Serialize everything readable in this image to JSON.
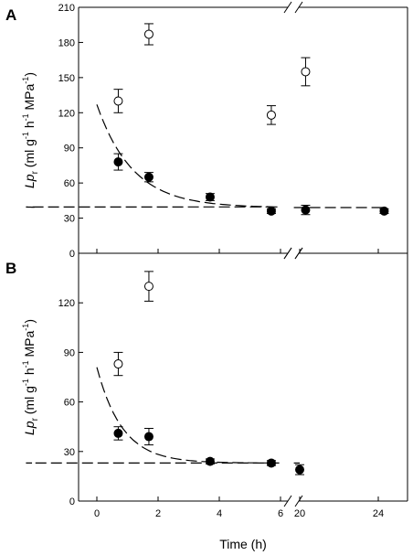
{
  "chart_data": [
    {
      "panel": "A",
      "type": "scatter",
      "ylabel": {
        "main": "Lp",
        "sub": "r",
        "units_a": " (ml g",
        "sup1": "-1",
        "units_b": " h",
        "sup2": "-1",
        "units_c": " MPa",
        "sup3": "-1",
        "close": ")"
      },
      "ylim": [
        0,
        210
      ],
      "yticks": [
        "0",
        "30",
        "60",
        "90",
        "120",
        "150",
        "180",
        "210"
      ],
      "xticks": [
        "0",
        "2",
        "4",
        "6",
        "20",
        "24"
      ],
      "x_axis_break": true,
      "series": [
        {
          "name": "",
          "marker": "open-circle",
          "points": [
            {
              "x": 0.7,
              "y": 130,
              "err": 10
            },
            {
              "x": 1.7,
              "y": 187,
              "err": 9
            },
            {
              "x": 5.7,
              "y": 118,
              "err": 8
            },
            {
              "x": 20.3,
              "y": 155,
              "err": 12
            }
          ]
        },
        {
          "name": "",
          "marker": "filled-circle",
          "points": [
            {
              "x": 0.7,
              "y": 78,
              "err": 7
            },
            {
              "x": 1.7,
              "y": 65,
              "err": 4
            },
            {
              "x": 3.7,
              "y": 48,
              "err": 3
            },
            {
              "x": 5.7,
              "y": 36,
              "err": 2
            },
            {
              "x": 20.3,
              "y": 37,
              "err": 4
            },
            {
              "x": 24.3,
              "y": 36,
              "err": 2
            }
          ]
        }
      ],
      "fit_curve": {
        "style": "dashed",
        "x_end": 24.3,
        "a": 39,
        "b": 88,
        "k": 0.85
      }
    },
    {
      "panel": "B",
      "type": "scatter",
      "ylabel": {
        "main": "Lp",
        "sub": "r",
        "units_a": " (ml g",
        "sup1": "-1",
        "units_b": " h",
        "sup2": "-1",
        "units_c": " MPa",
        "sup3": "-1",
        "close": ")"
      },
      "ylim": [
        0,
        150
      ],
      "yticks": [
        "0",
        "30",
        "60",
        "90",
        "120"
      ],
      "xticks": [
        "0",
        "2",
        "4",
        "6",
        "20",
        "24"
      ],
      "xlabel": "Time (h)",
      "x_axis_break": true,
      "series": [
        {
          "name": "",
          "marker": "open-circle",
          "points": [
            {
              "x": 0.7,
              "y": 83,
              "err": 7
            },
            {
              "x": 1.7,
              "y": 130,
              "err": 9
            }
          ]
        },
        {
          "name": "",
          "marker": "filled-circle",
          "points": [
            {
              "x": 0.7,
              "y": 41,
              "err": 4
            },
            {
              "x": 1.7,
              "y": 39,
              "err": 5
            },
            {
              "x": 3.7,
              "y": 24,
              "err": 1.5
            },
            {
              "x": 5.7,
              "y": 23,
              "err": 1.5
            },
            {
              "x": 20.0,
              "y": 19,
              "err": 3
            }
          ]
        }
      ],
      "fit_curve": {
        "style": "dashed",
        "x_end": 20.0,
        "a": 23,
        "b": 58,
        "k": 1.2
      }
    }
  ]
}
